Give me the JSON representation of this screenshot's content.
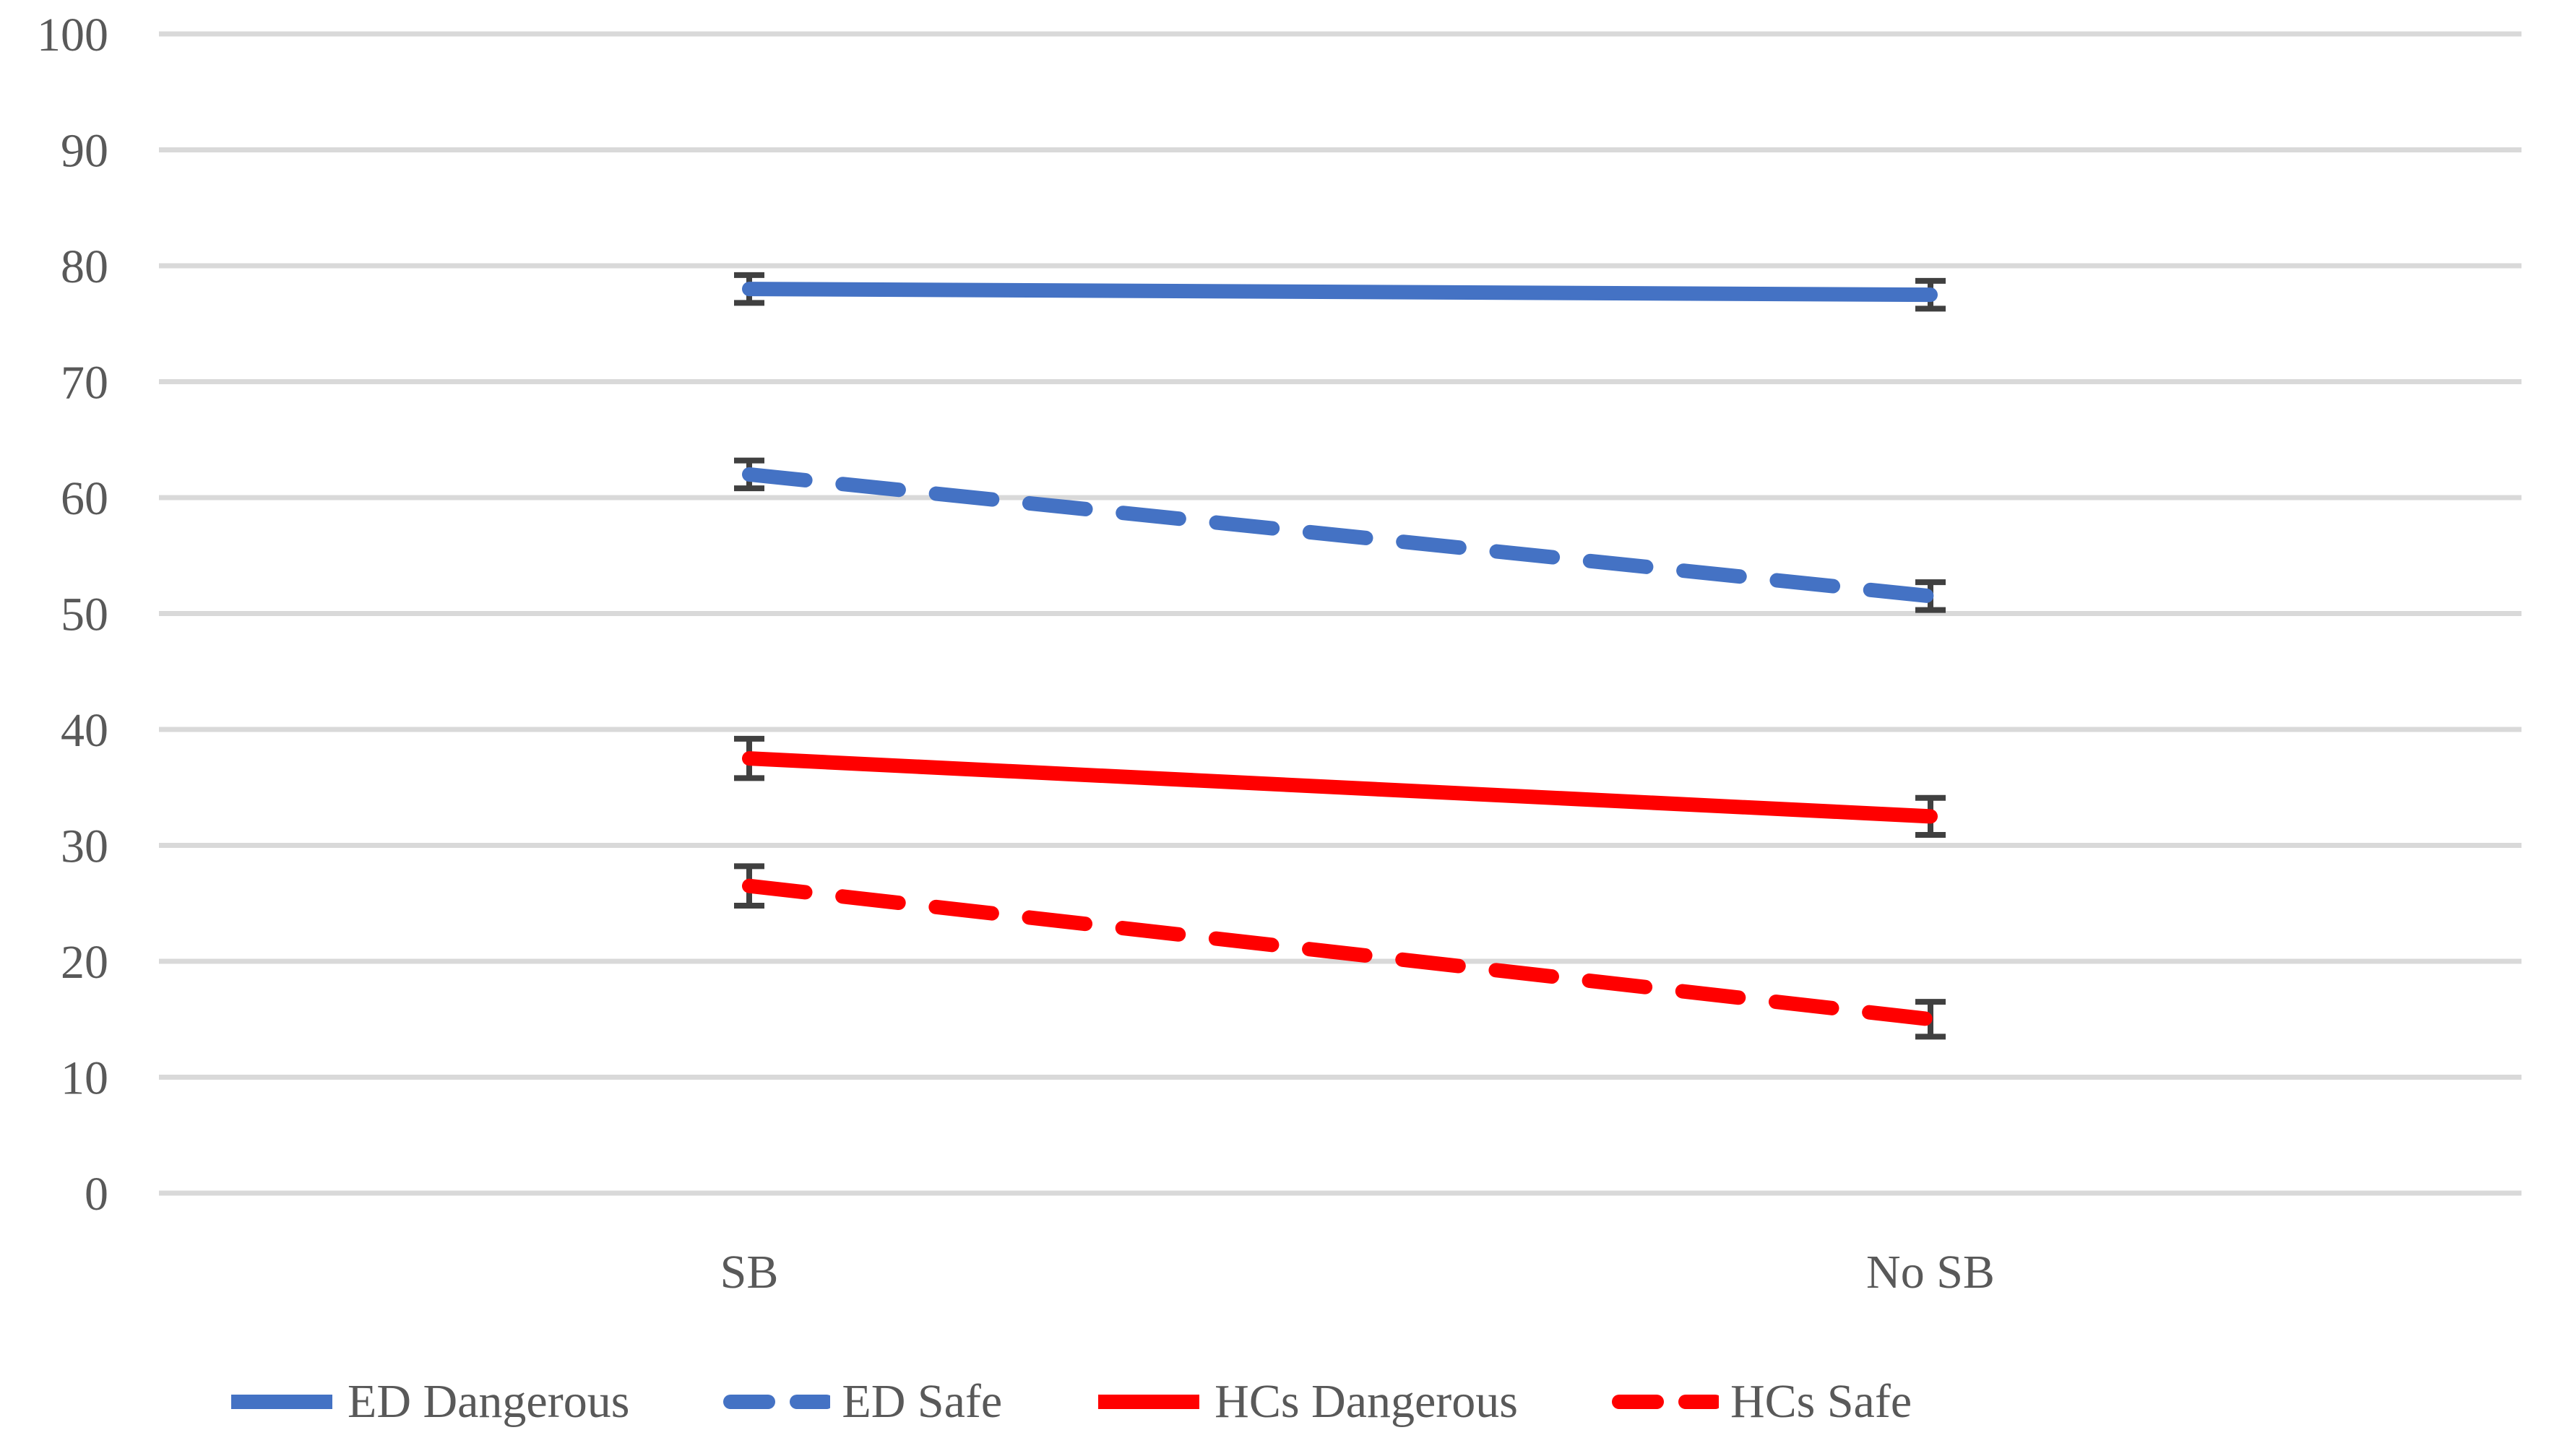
{
  "chart_data": {
    "type": "line",
    "title": "",
    "xlabel": "",
    "ylabel": "",
    "categories": [
      "SB",
      "No SB"
    ],
    "series": [
      {
        "name": "ED Dangerous",
        "color": "#4472C4",
        "style": "solid",
        "values": [
          78.0,
          77.5
        ],
        "errors": [
          1.2,
          1.2
        ]
      },
      {
        "name": "ED Safe",
        "color": "#4472C4",
        "style": "dashed",
        "values": [
          62.0,
          51.5
        ],
        "errors": [
          1.2,
          1.2
        ]
      },
      {
        "name": "HCs Dangerous",
        "color": "#FF0000",
        "style": "solid",
        "values": [
          37.5,
          32.5
        ],
        "errors": [
          1.7,
          1.6
        ]
      },
      {
        "name": "HCs Safe",
        "color": "#FF0000",
        "style": "dashed",
        "values": [
          26.5,
          15.0
        ],
        "errors": [
          1.7,
          1.5
        ]
      }
    ],
    "ylim": [
      0,
      100
    ],
    "ytick_step": 10,
    "ytick_labels": [
      "0",
      "10",
      "20",
      "30",
      "40",
      "50",
      "60",
      "70",
      "80",
      "90",
      "100"
    ],
    "grid": true,
    "legend_position": "bottom",
    "error_bars": true
  },
  "colors": {
    "background": "#FFFFFF",
    "gridline": "#D9D9D9",
    "axis_text": "#595959",
    "error_bar": "#404040",
    "blue_series": "#4472C4",
    "red_series": "#FF0000"
  }
}
